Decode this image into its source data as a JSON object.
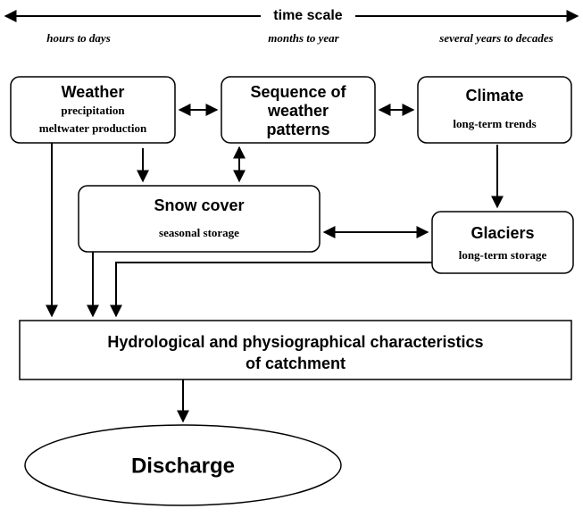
{
  "time_scale": {
    "label": "time scale",
    "left": "hours to days",
    "middle": "months to year",
    "right": "several years to decades"
  },
  "nodes": [
    {
      "title": "Weather",
      "lines": [
        "precipitation",
        "meltwater production"
      ]
    },
    {
      "title": "Sequence of",
      "lines": [
        "weather",
        "patterns"
      ]
    },
    {
      "title": "Climate",
      "lines": [
        "long-term trends"
      ]
    },
    {
      "title": "Snow cover",
      "lines": [
        "seasonal storage"
      ]
    },
    {
      "title": "Glaciers",
      "lines": [
        "long-term storage"
      ]
    }
  ],
  "catchment": {
    "lines": [
      "Hydrological and physiographical characteristics",
      "of catchment"
    ]
  },
  "discharge": "Discharge"
}
